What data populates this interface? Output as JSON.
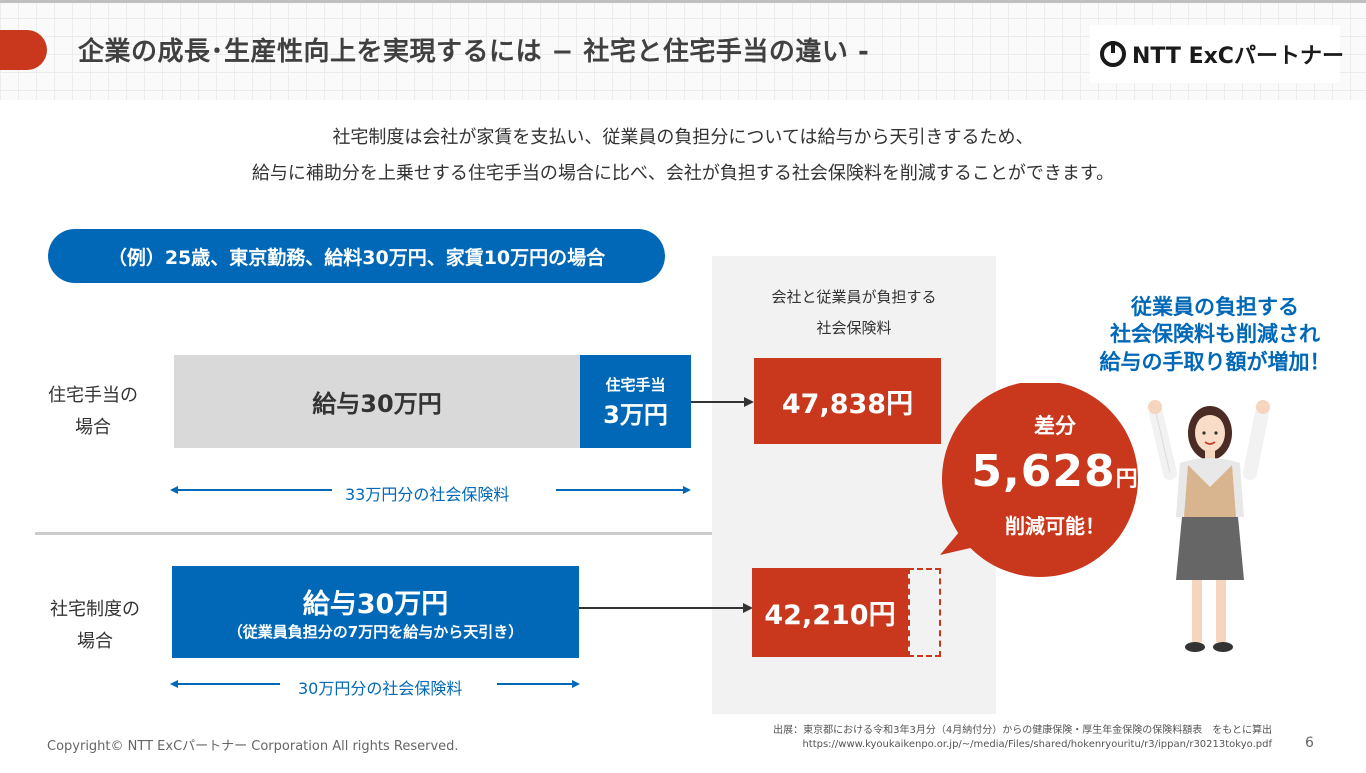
{
  "header": {
    "title": "企業の成長･生産性向上を実現するには − 社宅と住宅手当の違い -",
    "logo": "NTT ExCパートナー"
  },
  "intro": {
    "line1": "社宅制度は会社が家賃を支払い、従業員の負担分については給与から天引きするため、",
    "line2": "給与に補助分を上乗せする住宅手当の場合に比べ、会社が負担する社会保険料を削減することができます。"
  },
  "example_pill": "（例）25歳、東京勤務、給料30万円、家賃10万円の場合",
  "panel": {
    "head1": "会社と従業員が負担する",
    "head2": "社会保険料"
  },
  "row_allowance": {
    "label1": "住宅手当の",
    "label2": "場合",
    "salary": "給与30万円",
    "allowance1": "住宅手当",
    "allowance2": "3万円",
    "premium": "47,838円",
    "range_label": "33万円分の社会保険料"
  },
  "row_company": {
    "label1": "社宅制度の",
    "label2": "場合",
    "salary": "給与30万円",
    "salary_note": "（従業員負担分の7万円を給与から天引き）",
    "premium": "42,210円",
    "range_label": "30万円分の社会保険料"
  },
  "badge": {
    "top": "差分",
    "amount": "5,628",
    "unit": "円",
    "bottom": "削減可能！"
  },
  "right_msg": {
    "line1": "従業員の負担する",
    "line2": "社会保険料も削減され",
    "line3": "給与の手取り額が増加！"
  },
  "footer": {
    "copyright": "Copyright© NTT ExCパートナー Corporation All rights Reserved.",
    "source1": "出展：東京都における令和3年3月分（4月納付分）からの健康保険・厚生年金保険の保険料額表　をもとに算出",
    "source2": "https://www.kyoukaikenpo.or.jp/~/media/Files/shared/hokenryouritu/r3/ippan/r30213tokyo.pdf",
    "page": "6"
  },
  "colors": {
    "accent_red": "#c9371c",
    "brand_blue": "#0068b7",
    "gray_bar": "#d9d9d9"
  }
}
